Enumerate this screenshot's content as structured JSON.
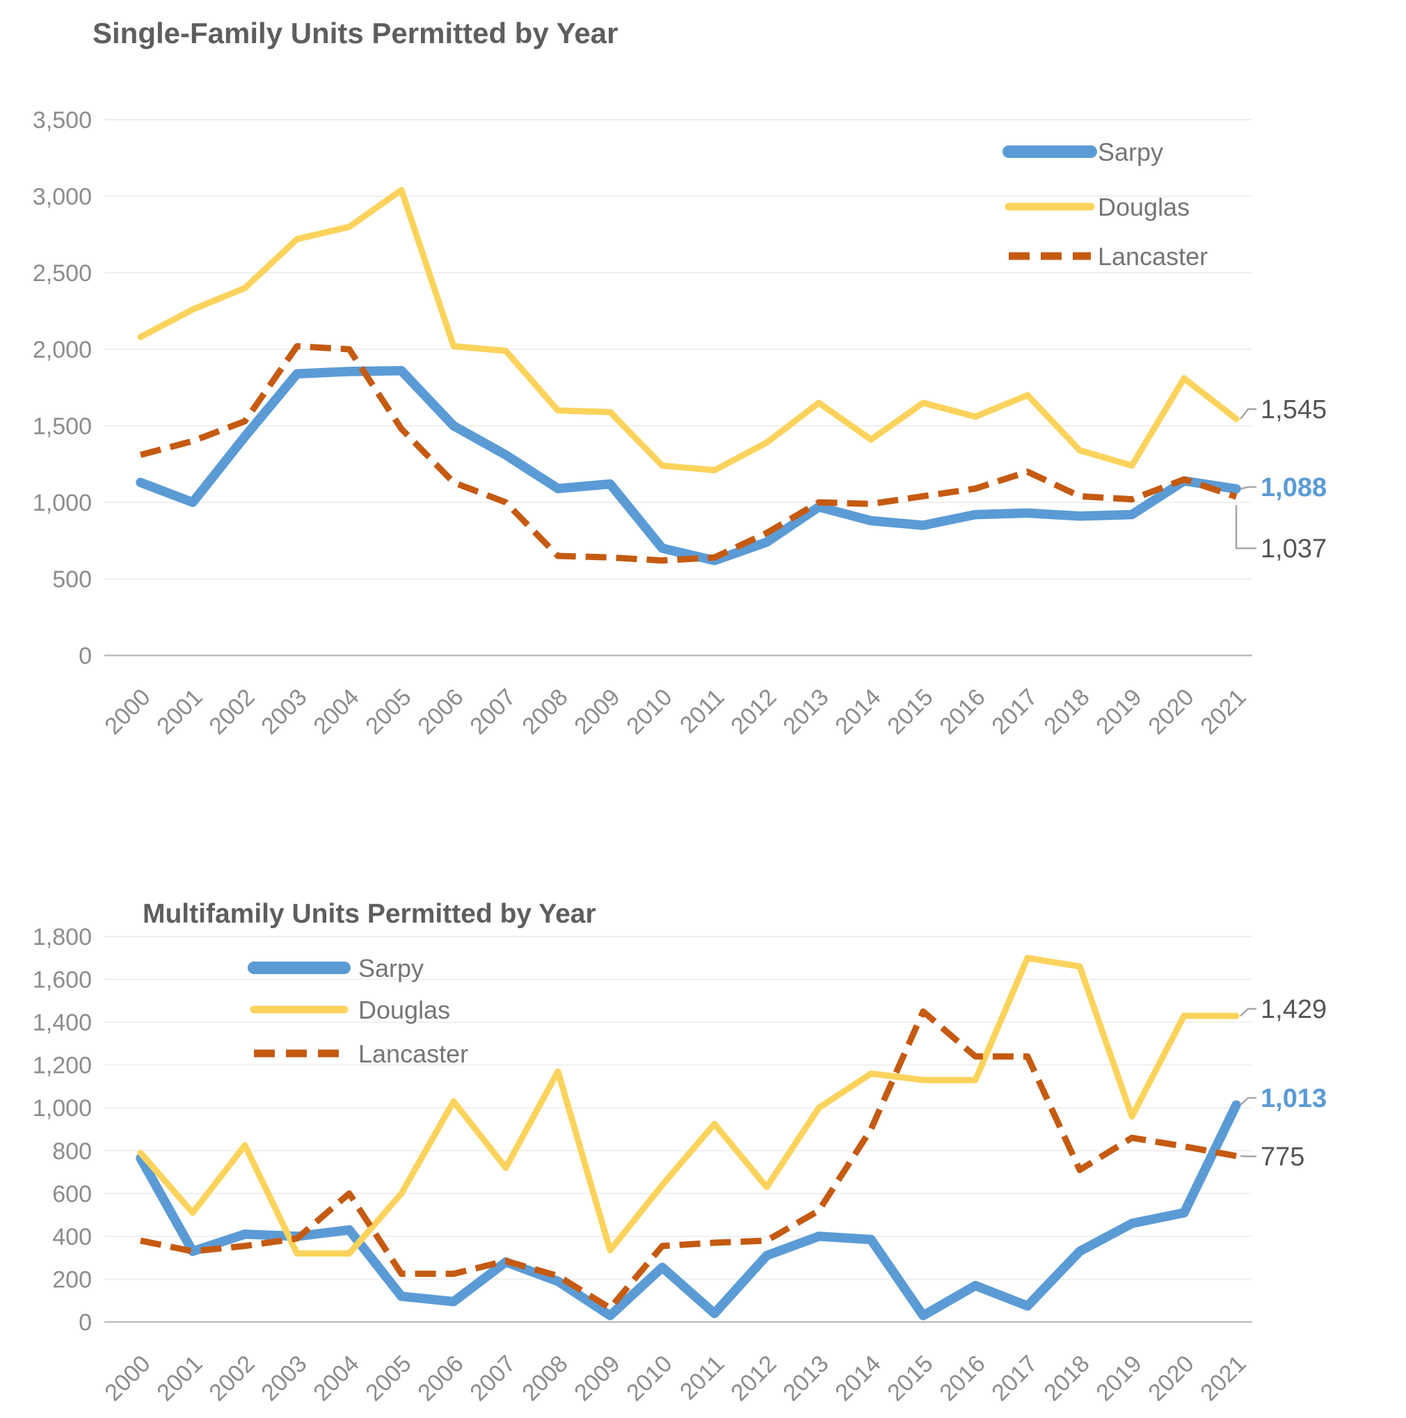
{
  "page": {
    "background": "#ffffff",
    "text_gray": "#8c8c8c",
    "title_gray": "#5e5e5e"
  },
  "chart_data": [
    {
      "type": "line",
      "title": "Single-Family Units Permitted by Year",
      "xlabel": "",
      "ylabel": "",
      "grid": true,
      "legend_position": "inside-top-right",
      "ylim": [
        0,
        3500
      ],
      "ytick_step": 500,
      "ytick_labels": [
        "3,500",
        "3,000",
        "2,500",
        "2,000",
        "1,500",
        "1,000",
        "500",
        "0"
      ],
      "x": [
        2000,
        2001,
        2002,
        2003,
        2004,
        2005,
        2006,
        2007,
        2008,
        2009,
        2010,
        2011,
        2012,
        2013,
        2014,
        2015,
        2016,
        2017,
        2018,
        2019,
        2020,
        2021
      ],
      "series": [
        {
          "name": "Sarpy",
          "color": "#5B9BD5",
          "style": "solid-thick",
          "end_label": "1,088",
          "values": [
            1130,
            1000,
            1430,
            1840,
            1855,
            1860,
            1500,
            1310,
            1090,
            1120,
            700,
            620,
            740,
            970,
            880,
            850,
            920,
            930,
            910,
            920,
            1140,
            1088
          ]
        },
        {
          "name": "Douglas",
          "color": "#FBD35C",
          "style": "solid",
          "end_label": "1,545",
          "values": [
            2080,
            2260,
            2400,
            2720,
            2800,
            3040,
            2020,
            1990,
            1600,
            1590,
            1240,
            1210,
            1390,
            1650,
            1410,
            1650,
            1560,
            1700,
            1340,
            1240,
            1810,
            1545
          ]
        },
        {
          "name": "Lancaster",
          "color": "#C55A11",
          "style": "dashed",
          "end_label": "1,037",
          "values": [
            1310,
            1400,
            1530,
            2020,
            2000,
            1480,
            1130,
            1000,
            650,
            640,
            620,
            640,
            800,
            1000,
            990,
            1040,
            1090,
            1200,
            1040,
            1020,
            1150,
            1037
          ]
        }
      ]
    },
    {
      "type": "line",
      "title": "Multifamily Units Permitted by Year",
      "xlabel": "",
      "ylabel": "",
      "grid": true,
      "legend_position": "inside-top-left",
      "ylim": [
        0,
        1800
      ],
      "ytick_step": 200,
      "ytick_labels": [
        "1,800",
        "1,600",
        "1,400",
        "1,200",
        "1,000",
        "800",
        "600",
        "400",
        "200",
        "0"
      ],
      "x": [
        2000,
        2001,
        2002,
        2003,
        2004,
        2005,
        2006,
        2007,
        2008,
        2009,
        2010,
        2011,
        2012,
        2013,
        2014,
        2015,
        2016,
        2017,
        2018,
        2019,
        2020,
        2021
      ],
      "series": [
        {
          "name": "Sarpy",
          "color": "#5B9BD5",
          "style": "solid-thick",
          "end_label": "1,013",
          "values": [
            765,
            330,
            410,
            400,
            430,
            120,
            95,
            280,
            190,
            30,
            255,
            40,
            310,
            400,
            385,
            30,
            170,
            75,
            330,
            460,
            510,
            1013
          ]
        },
        {
          "name": "Douglas",
          "color": "#FBD35C",
          "style": "solid",
          "end_label": "1,429",
          "values": [
            790,
            510,
            825,
            320,
            320,
            600,
            1030,
            720,
            1170,
            335,
            640,
            925,
            630,
            1000,
            1160,
            1130,
            1130,
            1700,
            1660,
            960,
            1430,
            1429
          ]
        },
        {
          "name": "Lancaster",
          "color": "#C55A11",
          "style": "dashed",
          "end_label": "775",
          "values": [
            380,
            330,
            355,
            390,
            600,
            225,
            225,
            285,
            215,
            65,
            355,
            370,
            380,
            520,
            900,
            1450,
            1240,
            1240,
            710,
            860,
            820,
            775
          ]
        }
      ]
    }
  ]
}
